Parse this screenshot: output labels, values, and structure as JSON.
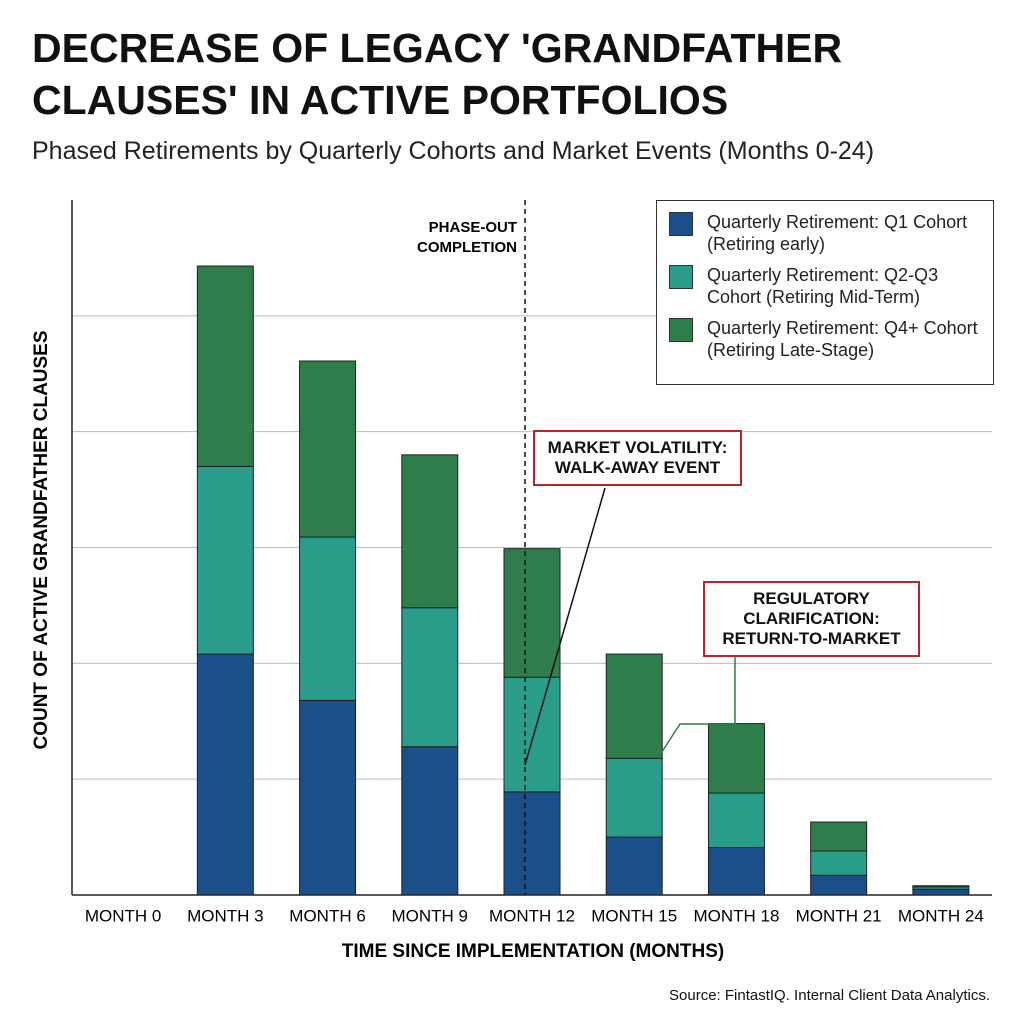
{
  "chart_data": {
    "type": "stacked_bar",
    "title": "DECREASE OF LEGACY 'GRANDFATHER CLAUSES' IN ACTIVE PORTFOLIOS",
    "subtitle": "Phased Retirements by Quarterly Cohorts and Market Events (Months 0-24)",
    "x_label": "TIME SINCE IMPLEMENTATION (MONTHS)",
    "y_label": "COUNT OF ACTIVE GRANDFATHER CLAUSES",
    "categories": [
      "MONTH 0",
      "MONTH 3",
      "MONTH 6",
      "MONTH 9",
      "MONTH 12",
      "MONTH 15",
      "MONTH 18",
      "MONTH 21",
      "MONTH 24"
    ],
    "series": [
      {
        "name": "Quarterly Retirement: Q1 Cohort (Retiring early)",
        "color": "#1a4f8a",
        "values": [
          0,
          2.08,
          1.68,
          1.28,
          0.89,
          0.5,
          0.41,
          0.17,
          0.05
        ]
      },
      {
        "name": "Quarterly Retirement: Q2-Q3 Cohort (Retiring Mid-Term)",
        "color": "#2a9d8a",
        "values": [
          0,
          1.62,
          1.41,
          1.2,
          0.99,
          0.68,
          0.47,
          0.21,
          0.02
        ]
      },
      {
        "name": "Quarterly Retirement: Q4+ Cohort (Retiring Late-Stage)",
        "color": "#2e7d4a",
        "values": [
          0,
          1.73,
          1.52,
          1.32,
          1.11,
          0.9,
          0.6,
          0.25,
          0.01
        ]
      }
    ],
    "ylim": [
      0,
      6
    ],
    "yticks": [
      1,
      2,
      3,
      4,
      5
    ],
    "grid": true,
    "annotations": [
      "PHASE-OUT COMPLETION",
      "MARKET VOLATILITY: WALK-AWAY EVENT",
      "REGULATORY CLARIFICATION: RETURN-TO-MARKET"
    ],
    "source": "Source: FintastIQ. Internal Client Data Analytics."
  }
}
